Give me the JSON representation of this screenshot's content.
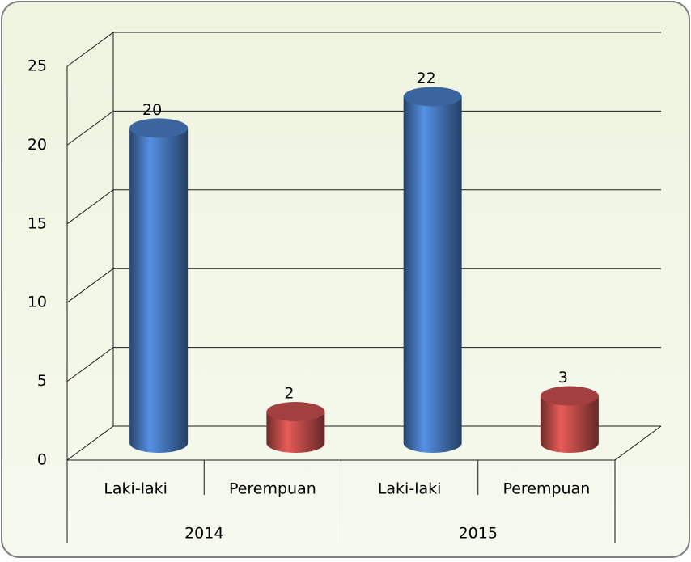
{
  "chart_data": {
    "type": "bar3d",
    "categories": [
      "Laki-laki",
      "Perempuan",
      "Laki-laki",
      "Perempuan"
    ],
    "groups": [
      "2014",
      "2015"
    ],
    "values": [
      20,
      2,
      22,
      3
    ],
    "colors": [
      "#4a7ec6",
      "#c9504d",
      "#4a7ec6",
      "#c9504d"
    ],
    "ylim": [
      0,
      25
    ],
    "yticks": [
      0,
      5,
      10,
      15,
      20,
      25
    ],
    "grid": true
  }
}
